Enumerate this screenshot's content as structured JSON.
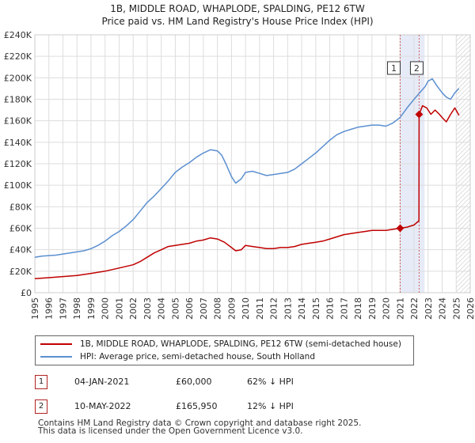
{
  "title": {
    "line1": "1B, MIDDLE ROAD, WHAPLODE, SPALDING, PE12 6TW",
    "line2": "Price paid vs. HM Land Registry's House Price Index (HPI)"
  },
  "chart_data": {
    "type": "line",
    "title": "1B, MIDDLE ROAD, WHAPLODE, SPALDING, PE12 6TW — Price paid vs. HM Land Registry's House Price Index (HPI)",
    "xlim": [
      1995,
      2026
    ],
    "ylim": [
      0,
      240000
    ],
    "y_ticks": [
      0,
      20000,
      40000,
      60000,
      80000,
      100000,
      120000,
      140000,
      160000,
      180000,
      200000,
      220000,
      240000
    ],
    "y_tick_labels": [
      "£0",
      "£20K",
      "£40K",
      "£60K",
      "£80K",
      "£100K",
      "£120K",
      "£140K",
      "£160K",
      "£180K",
      "£200K",
      "£220K",
      "£240K"
    ],
    "x_ticks": [
      1995,
      1996,
      1997,
      1998,
      1999,
      2000,
      2001,
      2002,
      2003,
      2004,
      2005,
      2006,
      2007,
      2008,
      2009,
      2010,
      2011,
      2012,
      2013,
      2014,
      2015,
      2016,
      2017,
      2018,
      2019,
      2020,
      2021,
      2022,
      2023,
      2024,
      2025,
      2026
    ],
    "grid": true,
    "shaded_periods": [
      [
        2021.0,
        2022.75
      ]
    ],
    "hatched_after": 2025.0,
    "colors": {
      "property": "#c00000",
      "hpi": "#5b8fd0"
    },
    "series": [
      {
        "name": "1B, MIDDLE ROAD, WHAPLODE, SPALDING, PE12 6TW (semi-detached house)",
        "color": "#c00000",
        "x": [
          1995.0,
          1996.0,
          1997.0,
          1998.0,
          1999.0,
          2000.0,
          2001.0,
          2002.0,
          2002.5,
          2003.0,
          2003.5,
          2004.0,
          2004.5,
          2005.0,
          2005.5,
          2006.0,
          2006.5,
          2007.0,
          2007.5,
          2008.0,
          2008.5,
          2009.0,
          2009.3,
          2009.7,
          2010.0,
          2010.5,
          2011.0,
          2011.5,
          2012.0,
          2012.5,
          2013.0,
          2013.5,
          2014.0,
          2014.5,
          2015.0,
          2015.5,
          2016.0,
          2016.5,
          2017.0,
          2017.5,
          2018.0,
          2018.5,
          2019.0,
          2019.5,
          2020.0,
          2020.5,
          2021.01,
          2021.5,
          2022.0,
          2022.35,
          2022.36,
          2022.6,
          2022.9,
          2023.2,
          2023.5,
          2023.8,
          2024.0,
          2024.3,
          2024.6,
          2024.9,
          2025.2
        ],
        "values": [
          13000,
          14000,
          15000,
          16000,
          18000,
          20000,
          23000,
          26000,
          29000,
          33000,
          37000,
          40000,
          43000,
          44000,
          45000,
          46000,
          48000,
          49000,
          51000,
          50000,
          47000,
          42000,
          39000,
          40000,
          44000,
          43000,
          42000,
          41000,
          41000,
          42000,
          42000,
          43000,
          45000,
          46000,
          47000,
          48000,
          50000,
          52000,
          54000,
          55000,
          56000,
          57000,
          58000,
          58000,
          58000,
          59000,
          60000,
          61000,
          63000,
          67000,
          165950,
          174000,
          172000,
          166000,
          170000,
          166000,
          163000,
          159000,
          166000,
          172000,
          165000
        ]
      },
      {
        "name": "HPI: Average price, semi-detached house, South Holland",
        "color": "#5b8fd0",
        "x": [
          1995.0,
          1995.5,
          1996.0,
          1996.5,
          1997.0,
          1997.5,
          1998.0,
          1998.5,
          1999.0,
          1999.5,
          2000.0,
          2000.5,
          2001.0,
          2001.5,
          2002.0,
          2002.5,
          2003.0,
          2003.5,
          2004.0,
          2004.5,
          2005.0,
          2005.5,
          2006.0,
          2006.5,
          2007.0,
          2007.5,
          2008.0,
          2008.3,
          2008.6,
          2009.0,
          2009.3,
          2009.7,
          2010.0,
          2010.5,
          2011.0,
          2011.5,
          2012.0,
          2012.5,
          2013.0,
          2013.5,
          2014.0,
          2014.5,
          2015.0,
          2015.5,
          2016.0,
          2016.5,
          2017.0,
          2017.5,
          2018.0,
          2018.5,
          2019.0,
          2019.5,
          2020.0,
          2020.5,
          2021.0,
          2021.5,
          2022.0,
          2022.4,
          2022.8,
          2023.0,
          2023.3,
          2023.6,
          2024.0,
          2024.3,
          2024.6,
          2024.9,
          2025.2
        ],
        "values": [
          33000,
          34000,
          34500,
          35000,
          36000,
          37000,
          38000,
          39000,
          41000,
          44000,
          48000,
          53000,
          57000,
          62000,
          68000,
          76000,
          84000,
          90000,
          97000,
          104000,
          112000,
          117000,
          121000,
          126000,
          130000,
          133000,
          132000,
          128000,
          120000,
          108000,
          102000,
          106000,
          112000,
          113000,
          111000,
          109000,
          110000,
          111000,
          112000,
          115000,
          120000,
          125000,
          130000,
          136000,
          142000,
          147000,
          150000,
          152000,
          154000,
          155000,
          156000,
          156000,
          155000,
          158000,
          163000,
          172000,
          180000,
          186000,
          192000,
          197000,
          199000,
          193000,
          186000,
          182000,
          180000,
          186000,
          190000
        ]
      }
    ],
    "annotations": [
      {
        "label": "1",
        "date": "04-JAN-2021",
        "x": 2021.01,
        "price": 60000,
        "price_text": "£60,000",
        "hpi_note": "62% ↓ HPI"
      },
      {
        "label": "2",
        "date": "10-MAY-2022",
        "x": 2022.36,
        "price": 165950,
        "price_text": "£165,950",
        "hpi_note": "12% ↓ HPI"
      }
    ]
  },
  "legend": {
    "items": [
      {
        "label": "1B, MIDDLE ROAD, WHAPLODE, SPALDING, PE12 6TW (semi-detached house)",
        "color": "#c00000"
      },
      {
        "label": "HPI: Average price, semi-detached house, South Holland",
        "color": "#5b8fd0"
      }
    ]
  },
  "transactions": [
    {
      "num": "1",
      "date": "04-JAN-2021",
      "price": "£60,000",
      "hpi": "62% ↓ HPI"
    },
    {
      "num": "2",
      "date": "10-MAY-2022",
      "price": "£165,950",
      "hpi": "12% ↓ HPI"
    }
  ],
  "footer": {
    "line1": "Contains HM Land Registry data © Crown copyright and database right 2025.",
    "line2": "This data is licensed under the Open Government Licence v3.0."
  }
}
